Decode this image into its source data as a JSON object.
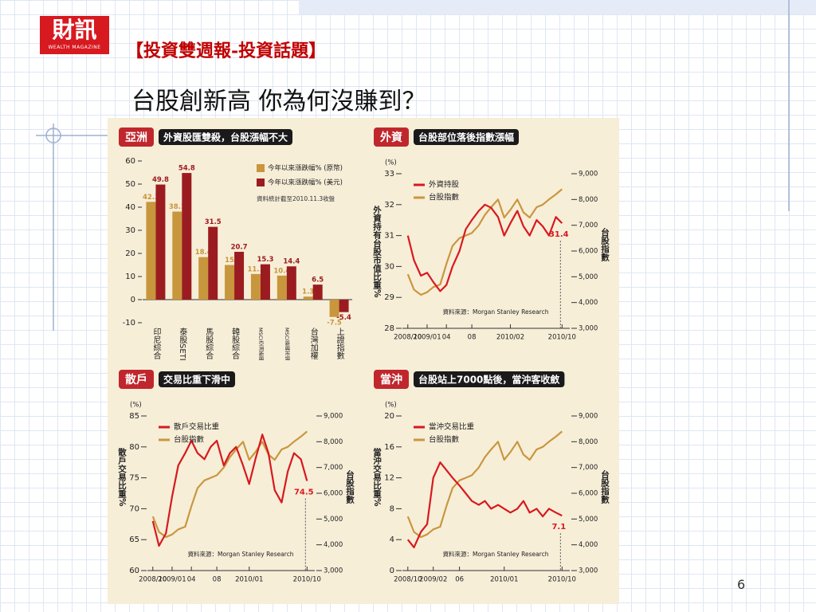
{
  "logo": {
    "name": "財訊",
    "sub": "WEALTH MAGAZINE"
  },
  "header": {
    "kicker": "【投資雙週報-投資話題】",
    "title": "台股創新高  你為何沒賺到？"
  },
  "page_number": "6",
  "chart_data": [
    {
      "type": "bar",
      "tag": "亞洲",
      "title": "外資股匯雙殺，台股漲幅不大",
      "note": "資料統計截至2010.11.3收盤",
      "categories": [
        "印尼綜合",
        "泰股SETI",
        "馬股綜合",
        "韓股綜合",
        "MSCI亞洲新興市場(MSCI EM Asia)",
        "MSCI新興市場(MSCI GEMs)",
        "台灣加權",
        "上證指數"
      ],
      "series": [
        {
          "name": "今年以來漲跌幅% (原幣)",
          "color": "#c8963c",
          "values": [
            42.3,
            38.1,
            18.4,
            15,
            11.1,
            10.4,
            1.3,
            -7.5
          ]
        },
        {
          "name": "今年以來漲跌幅% (美元)",
          "color": "#9b1c20",
          "values": [
            49.8,
            54.8,
            31.5,
            20.7,
            15.3,
            14.4,
            6.5,
            -5.4
          ]
        }
      ],
      "ylim": [
        -10,
        60
      ],
      "yticks": [
        -10,
        0,
        10,
        20,
        30,
        40,
        50,
        60
      ]
    },
    {
      "type": "line",
      "tag": "外資",
      "title": "台股部位落後指數漲幅",
      "y_unit": "(%)",
      "ylabel": "外資持有台股市值比重%",
      "y2label": "台股指數",
      "source": "資料來源：Morgan Stanley Research",
      "annotation": "31.4",
      "x": [
        2008.75,
        2008.83,
        2008.92,
        2009.0,
        2009.08,
        2009.17,
        2009.25,
        2009.33,
        2009.42,
        2009.5,
        2009.58,
        2009.67,
        2009.75,
        2009.83,
        2009.92,
        2010.0,
        2010.08,
        2010.17,
        2010.25,
        2010.33,
        2010.42,
        2010.5,
        2010.58,
        2010.67,
        2010.75
      ],
      "series": [
        {
          "name": "外資持股",
          "color": "#d7191f",
          "values": [
            31.0,
            30.2,
            29.7,
            29.8,
            29.5,
            29.2,
            29.4,
            30.0,
            30.5,
            31.2,
            31.5,
            31.8,
            32.0,
            31.9,
            31.6,
            31.0,
            31.4,
            31.8,
            31.3,
            31.0,
            31.5,
            31.3,
            31.0,
            31.6,
            31.4
          ]
        },
        {
          "name": "台股指數",
          "color": "#c9973f",
          "axis": "y2",
          "values": [
            5100,
            4500,
            4300,
            4400,
            4600,
            4700,
            5500,
            6200,
            6500,
            6600,
            6700,
            7000,
            7400,
            7700,
            8000,
            7300,
            7600,
            8000,
            7500,
            7300,
            7700,
            7800,
            8000,
            8200,
            8400
          ]
        }
      ],
      "xlim": [
        2008.68,
        2010.85
      ],
      "xticks": [
        {
          "value": 2008.75,
          "label": "2008/10"
        },
        {
          "value": 2009.0,
          "label": "2009/01"
        },
        {
          "value": 2009.25,
          "label": "04"
        },
        {
          "value": 2009.58,
          "label": "08"
        },
        {
          "value": 2010.08,
          "label": "2010/02"
        },
        {
          "value": 2010.75,
          "label": "2010/10"
        }
      ],
      "ylim": [
        28,
        33
      ],
      "yticks": [
        28,
        29,
        30,
        31,
        32,
        33
      ],
      "y2lim": [
        3000,
        9000
      ],
      "y2ticks": [
        {
          "value": 3000,
          "label": "3,000"
        },
        {
          "value": 4000,
          "label": "4,000"
        },
        {
          "value": 5000,
          "label": "5,000"
        },
        {
          "value": 6000,
          "label": "6,000"
        },
        {
          "value": 7000,
          "label": "7,000"
        },
        {
          "value": 8000,
          "label": "8,000"
        },
        {
          "value": 9000,
          "label": "9,000"
        }
      ]
    },
    {
      "type": "line",
      "tag": "散戶",
      "title": "交易比重下滑中",
      "y_unit": "(%)",
      "ylabel": "散戶交易比重%",
      "y2label": "台股指數",
      "source": "資料來源：Morgan Stanley Research",
      "annotation": "74.5",
      "x": [
        2008.75,
        2008.83,
        2008.92,
        2009.0,
        2009.08,
        2009.17,
        2009.25,
        2009.33,
        2009.42,
        2009.5,
        2009.58,
        2009.67,
        2009.75,
        2009.83,
        2009.92,
        2010.0,
        2010.08,
        2010.17,
        2010.25,
        2010.33,
        2010.42,
        2010.5,
        2010.58,
        2010.67,
        2010.75
      ],
      "series": [
        {
          "name": "散戶交易比重",
          "color": "#d7191f",
          "values": [
            68,
            64,
            66,
            72,
            77,
            79,
            81,
            79,
            78,
            80,
            81,
            77,
            79,
            80,
            77,
            74,
            78,
            82,
            79,
            73,
            71,
            76,
            79,
            78,
            74.5
          ]
        },
        {
          "name": "台股指數",
          "color": "#c9973f",
          "axis": "y2",
          "values": [
            5100,
            4500,
            4300,
            4400,
            4600,
            4700,
            5500,
            6200,
            6500,
            6600,
            6700,
            7000,
            7400,
            7700,
            8000,
            7300,
            7600,
            8000,
            7500,
            7300,
            7700,
            7800,
            8000,
            8200,
            8400
          ]
        }
      ],
      "xlim": [
        2008.68,
        2010.85
      ],
      "xticks": [
        {
          "value": 2008.75,
          "label": "2008/10"
        },
        {
          "value": 2009.0,
          "label": "2009/01"
        },
        {
          "value": 2009.25,
          "label": "04"
        },
        {
          "value": 2009.58,
          "label": "08"
        },
        {
          "value": 2010.0,
          "label": "2010/01"
        },
        {
          "value": 2010.75,
          "label": "2010/10"
        }
      ],
      "ylim": [
        60,
        85
      ],
      "yticks": [
        60,
        65,
        70,
        75,
        80,
        85
      ],
      "y2lim": [
        3000,
        9000
      ],
      "y2ticks": [
        {
          "value": 3000,
          "label": "3,000"
        },
        {
          "value": 4000,
          "label": "4,000"
        },
        {
          "value": 5000,
          "label": "5,000"
        },
        {
          "value": 6000,
          "label": "6,000"
        },
        {
          "value": 7000,
          "label": "7,000"
        },
        {
          "value": 8000,
          "label": "8,000"
        },
        {
          "value": 9000,
          "label": "9,000"
        }
      ]
    },
    {
      "type": "line",
      "tag": "當沖",
      "title": "台股站上7000點後，當沖客收斂",
      "y_unit": "(%)",
      "ylabel": "當沖交易比重%",
      "y2label": "台股指數",
      "source": "資料來源：Morgan Stanley Research",
      "annotation": "7.1",
      "x": [
        2008.75,
        2008.83,
        2008.92,
        2009.0,
        2009.08,
        2009.17,
        2009.25,
        2009.33,
        2009.42,
        2009.5,
        2009.58,
        2009.67,
        2009.75,
        2009.83,
        2009.92,
        2010.0,
        2010.08,
        2010.17,
        2010.25,
        2010.33,
        2010.42,
        2010.5,
        2010.58,
        2010.67,
        2010.75
      ],
      "series": [
        {
          "name": "當沖交易比重",
          "color": "#d7191f",
          "values": [
            4,
            3,
            5,
            6,
            12,
            14,
            13,
            12,
            11,
            10,
            9,
            8.5,
            9,
            8,
            8.5,
            8,
            7.5,
            8,
            9,
            7.5,
            8,
            7,
            8,
            7.5,
            7.1
          ]
        },
        {
          "name": "台股指數",
          "color": "#c9973f",
          "axis": "y2",
          "values": [
            5100,
            4500,
            4300,
            4400,
            4600,
            4700,
            5500,
            6200,
            6500,
            6600,
            6700,
            7000,
            7400,
            7700,
            8000,
            7300,
            7600,
            8000,
            7500,
            7300,
            7700,
            7800,
            8000,
            8200,
            8400
          ]
        }
      ],
      "xlim": [
        2008.68,
        2010.85
      ],
      "xticks": [
        {
          "value": 2008.75,
          "label": "2008/10"
        },
        {
          "value": 2009.08,
          "label": "2009/02"
        },
        {
          "value": 2009.42,
          "label": "06"
        },
        {
          "value": 2010.0,
          "label": "2010/01"
        },
        {
          "value": 2010.75,
          "label": "2010/10"
        }
      ],
      "ylim": [
        0,
        20
      ],
      "yticks": [
        0,
        4,
        8,
        12,
        16,
        20
      ],
      "y2lim": [
        3000,
        9000
      ],
      "y2ticks": [
        {
          "value": 3000,
          "label": "3,000"
        },
        {
          "value": 4000,
          "label": "4,000"
        },
        {
          "value": 5000,
          "label": "5,000"
        },
        {
          "value": 6000,
          "label": "6,000"
        },
        {
          "value": 7000,
          "label": "7,000"
        },
        {
          "value": 8000,
          "label": "8,000"
        },
        {
          "value": 9000,
          "label": "9,000"
        }
      ]
    }
  ]
}
